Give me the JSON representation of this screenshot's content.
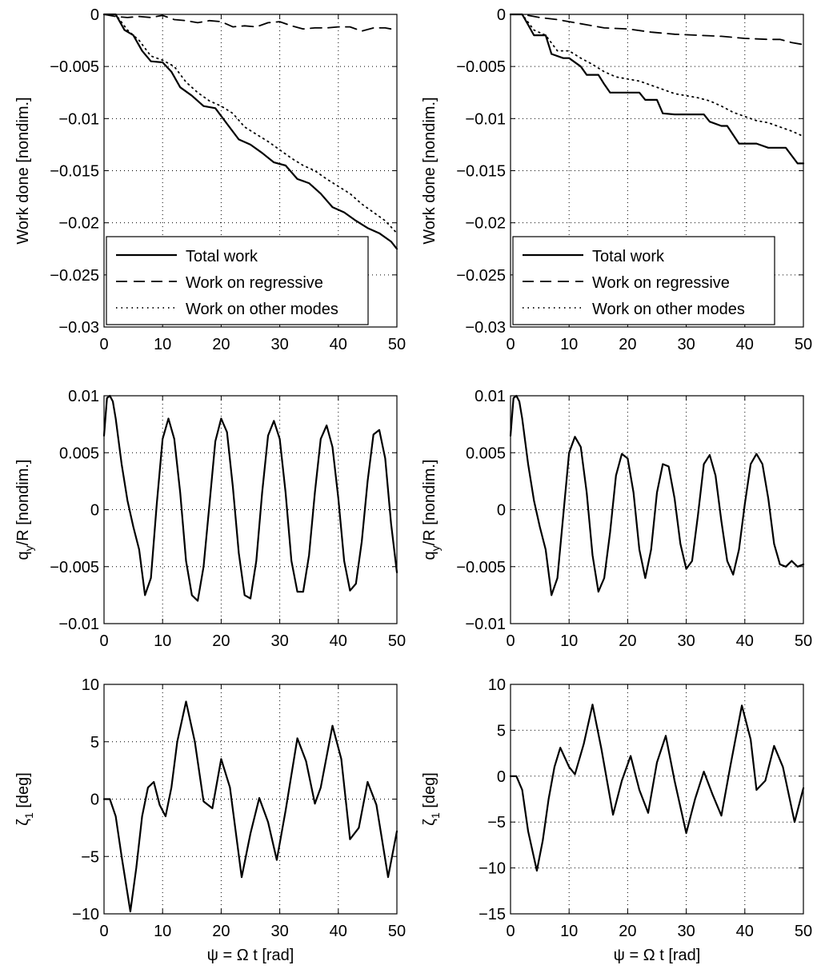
{
  "figure": {
    "background": "#ffffff",
    "line_color": "#000000"
  },
  "chart_data": [
    {
      "type": "line",
      "title": "",
      "xlabel": "",
      "ylabel": "Work done [nondim.]",
      "xlim": [
        0,
        50
      ],
      "ylim": [
        -0.03,
        0
      ],
      "xticks": [
        0,
        10,
        20,
        30,
        40,
        50
      ],
      "xtick_labels": [
        "0",
        "10",
        "20",
        "30",
        "40",
        "50"
      ],
      "yticks": [
        -0.03,
        -0.025,
        -0.02,
        -0.015,
        -0.01,
        -0.005,
        0
      ],
      "ytick_labels": [
        "−0.03",
        "−0.025",
        "−0.02",
        "−0.015",
        "−0.01",
        "−0.005",
        "0"
      ],
      "grid": true,
      "legend": "bottom-left",
      "series": [
        {
          "name": "Total work",
          "style": "solid",
          "x": [
            0,
            2,
            3.5,
            5,
            6.5,
            8,
            10,
            11.5,
            13,
            15,
            17,
            19,
            21,
            23,
            25,
            27,
            29,
            31,
            33,
            35,
            37,
            39,
            41,
            43,
            45,
            47,
            49,
            50
          ],
          "y": [
            0,
            0,
            -0.0015,
            -0.002,
            -0.0035,
            -0.0045,
            -0.0046,
            -0.0055,
            -0.007,
            -0.0078,
            -0.0088,
            -0.009,
            -0.0105,
            -0.012,
            -0.0125,
            -0.0133,
            -0.0142,
            -0.0145,
            -0.0158,
            -0.0162,
            -0.0172,
            -0.0185,
            -0.019,
            -0.0198,
            -0.0205,
            -0.021,
            -0.0218,
            -0.0225
          ]
        },
        {
          "name": "Work on regressive",
          "style": "dashed",
          "x": [
            0,
            2,
            4,
            6,
            8,
            10,
            12,
            14,
            16,
            18,
            20,
            22,
            24,
            26,
            28,
            30,
            32,
            34,
            36,
            38,
            40,
            42,
            44,
            46,
            48,
            50
          ],
          "y": [
            0,
            -0.0002,
            -0.0003,
            -0.0002,
            -0.0003,
            -0.0001,
            -0.0005,
            -0.0006,
            -0.0008,
            -0.0006,
            -0.0007,
            -0.0012,
            -0.0011,
            -0.0012,
            -0.0008,
            -0.0007,
            -0.0011,
            -0.0014,
            -0.0013,
            -0.0013,
            -0.0012,
            -0.0012,
            -0.0016,
            -0.0013,
            -0.0013,
            -0.0015
          ]
        },
        {
          "name": "Work on other modes",
          "style": "dotted",
          "x": [
            0,
            2,
            4,
            6,
            8,
            10,
            12,
            14,
            16,
            18,
            20,
            22,
            24,
            26,
            28,
            30,
            32,
            34,
            36,
            38,
            40,
            42,
            44,
            46,
            48,
            50
          ],
          "y": [
            0,
            0,
            -0.0015,
            -0.0025,
            -0.004,
            -0.0044,
            -0.005,
            -0.0065,
            -0.0075,
            -0.0083,
            -0.0088,
            -0.0095,
            -0.0108,
            -0.0115,
            -0.0122,
            -0.013,
            -0.0138,
            -0.0145,
            -0.015,
            -0.0158,
            -0.0165,
            -0.0172,
            -0.0182,
            -0.019,
            -0.0198,
            -0.021
          ]
        }
      ]
    },
    {
      "type": "line",
      "title": "",
      "xlabel": "",
      "ylabel": "Work done [nondim.]",
      "xlim": [
        0,
        50
      ],
      "ylim": [
        -0.03,
        0
      ],
      "xticks": [
        0,
        10,
        20,
        30,
        40,
        50
      ],
      "xtick_labels": [
        "0",
        "10",
        "20",
        "30",
        "40",
        "50"
      ],
      "yticks": [
        -0.03,
        -0.025,
        -0.02,
        -0.015,
        -0.01,
        -0.005,
        0
      ],
      "ytick_labels": [
        "−0.03",
        "−0.025",
        "−0.02",
        "−0.015",
        "−0.01",
        "−0.005",
        "0"
      ],
      "grid": true,
      "legend": "bottom-left",
      "series": [
        {
          "name": "Total work",
          "style": "solid",
          "x": [
            0,
            2,
            3,
            4,
            6,
            7,
            9,
            10,
            12,
            13,
            15,
            16,
            17,
            19,
            22,
            23,
            25,
            26,
            28,
            31,
            33,
            34,
            36,
            37,
            39,
            42,
            44,
            47,
            49,
            50
          ],
          "y": [
            0,
            0,
            -0.001,
            -0.002,
            -0.002,
            -0.0038,
            -0.0042,
            -0.0042,
            -0.005,
            -0.0058,
            -0.0058,
            -0.0067,
            -0.0075,
            -0.0075,
            -0.0075,
            -0.0082,
            -0.0082,
            -0.0095,
            -0.0096,
            -0.0096,
            -0.0096,
            -0.0103,
            -0.0107,
            -0.0107,
            -0.0124,
            -0.0124,
            -0.0128,
            -0.0128,
            -0.0143,
            -0.0143
          ]
        },
        {
          "name": "Work on regressive",
          "style": "dashed",
          "x": [
            0,
            2,
            5,
            8,
            10,
            13,
            16,
            20,
            24,
            28,
            32,
            36,
            40,
            44,
            46,
            48,
            50
          ],
          "y": [
            0,
            0,
            -0.0003,
            -0.0005,
            -0.0007,
            -0.001,
            -0.0013,
            -0.0014,
            -0.0017,
            -0.0019,
            -0.002,
            -0.0021,
            -0.0023,
            -0.0024,
            -0.0024,
            -0.0027,
            -0.0029
          ]
        },
        {
          "name": "Work on other modes",
          "style": "dotted",
          "x": [
            0,
            2,
            4,
            6,
            8,
            10,
            12,
            14,
            16,
            18,
            20,
            22,
            24,
            26,
            28,
            30,
            32,
            34,
            36,
            38,
            40,
            42,
            44,
            46,
            48,
            50
          ],
          "y": [
            0,
            0,
            -0.0015,
            -0.002,
            -0.0035,
            -0.0035,
            -0.0042,
            -0.0048,
            -0.0055,
            -0.006,
            -0.0062,
            -0.0064,
            -0.0068,
            -0.0072,
            -0.0076,
            -0.0078,
            -0.008,
            -0.0083,
            -0.0088,
            -0.0094,
            -0.0098,
            -0.0102,
            -0.0104,
            -0.0108,
            -0.0112,
            -0.0117
          ]
        }
      ]
    },
    {
      "type": "line",
      "title": "",
      "xlabel": "",
      "ylabel": "q_y/R [nondim.]",
      "xlim": [
        0,
        50
      ],
      "ylim": [
        -0.01,
        0.01
      ],
      "xticks": [
        0,
        10,
        20,
        30,
        40,
        50
      ],
      "xtick_labels": [
        "0",
        "10",
        "20",
        "30",
        "40",
        "50"
      ],
      "yticks": [
        -0.01,
        -0.005,
        0,
        0.005,
        0.01
      ],
      "ytick_labels": [
        "−0.01",
        "−0.005",
        "0",
        "0.005",
        "0.01"
      ],
      "grid": true,
      "series": [
        {
          "name": "",
          "style": "solid",
          "x": [
            0,
            0.5,
            1,
            1.5,
            2,
            3,
            4,
            5,
            6,
            7,
            8,
            9,
            10,
            11,
            12,
            13,
            14,
            15,
            16,
            17,
            18,
            19,
            20,
            21,
            22,
            23,
            24,
            25,
            26,
            27,
            28,
            29,
            30,
            31,
            32,
            33,
            34,
            35,
            36,
            37,
            38,
            39,
            40,
            41,
            42,
            43,
            44,
            45,
            46,
            47,
            48,
            49,
            50
          ],
          "y": [
            0.0065,
            0.0098,
            0.01,
            0.0095,
            0.008,
            0.004,
            0.0008,
            -0.0015,
            -0.0035,
            -0.0075,
            -0.006,
            0.0005,
            0.0062,
            0.008,
            0.0062,
            0.0015,
            -0.0045,
            -0.0075,
            -0.008,
            -0.005,
            0.0005,
            0.006,
            0.008,
            0.0068,
            0.002,
            -0.0038,
            -0.0075,
            -0.0078,
            -0.0045,
            0.0015,
            0.0065,
            0.0078,
            0.0062,
            0.0015,
            -0.0045,
            -0.0072,
            -0.0072,
            -0.004,
            0.0015,
            0.0062,
            0.0074,
            0.0055,
            0.001,
            -0.0045,
            -0.0071,
            -0.0065,
            -0.0028,
            0.0025,
            0.0066,
            0.007,
            0.0045,
            -0.0012,
            -0.0055
          ]
        }
      ]
    },
    {
      "type": "line",
      "title": "",
      "xlabel": "",
      "ylabel": "q_y/R [nondim.]",
      "xlim": [
        0,
        50
      ],
      "ylim": [
        -0.01,
        0.01
      ],
      "xticks": [
        0,
        10,
        20,
        30,
        40,
        50
      ],
      "xtick_labels": [
        "0",
        "10",
        "20",
        "30",
        "40",
        "50"
      ],
      "yticks": [
        -0.01,
        -0.005,
        0,
        0.005,
        0.01
      ],
      "ytick_labels": [
        "−0.01",
        "−0.005",
        "0",
        "0.005",
        "0.01"
      ],
      "grid": true,
      "series": [
        {
          "name": "",
          "style": "solid",
          "x": [
            0,
            0.5,
            1,
            1.5,
            2,
            3,
            4,
            5,
            6,
            7,
            8,
            9,
            10,
            11,
            12,
            13,
            14,
            15,
            16,
            17,
            18,
            19,
            20,
            21,
            22,
            23,
            24,
            25,
            26,
            27,
            28,
            29,
            30,
            31,
            32,
            33,
            34,
            35,
            36,
            37,
            38,
            39,
            40,
            41,
            42,
            43,
            44,
            45,
            46,
            47,
            48,
            49,
            50
          ],
          "y": [
            0.0065,
            0.0098,
            0.01,
            0.0095,
            0.008,
            0.004,
            0.0008,
            -0.0015,
            -0.0035,
            -0.0075,
            -0.006,
            -0.0005,
            0.005,
            0.0064,
            0.0055,
            0.0015,
            -0.004,
            -0.0072,
            -0.006,
            -0.002,
            0.003,
            0.0049,
            0.0045,
            0.0015,
            -0.0035,
            -0.006,
            -0.0035,
            0.0015,
            0.004,
            0.0038,
            0.001,
            -0.003,
            -0.0052,
            -0.0045,
            -0.0005,
            0.004,
            0.0048,
            0.003,
            -0.001,
            -0.0045,
            -0.0057,
            -0.0035,
            0.0005,
            0.004,
            0.0049,
            0.004,
            0.001,
            -0.003,
            -0.0048,
            -0.005,
            -0.0045,
            -0.005,
            -0.0048
          ]
        }
      ]
    },
    {
      "type": "line",
      "title": "",
      "xlabel": "ψ = Ω t [rad]",
      "ylabel": "ζ_1 [deg]",
      "xlim": [
        0,
        50
      ],
      "ylim": [
        -10,
        10
      ],
      "xticks": [
        0,
        10,
        20,
        30,
        40,
        50
      ],
      "xtick_labels": [
        "0",
        "10",
        "20",
        "30",
        "40",
        "50"
      ],
      "yticks": [
        -10,
        -5,
        0,
        5,
        10
      ],
      "ytick_labels": [
        "−10",
        "−5",
        "0",
        "5",
        "10"
      ],
      "grid": true,
      "series": [
        {
          "name": "",
          "style": "solid",
          "x": [
            0,
            1,
            2,
            3,
            4.5,
            5.5,
            6.5,
            7.5,
            8.5,
            9.5,
            10.5,
            11.5,
            12.5,
            14,
            15.5,
            17,
            18.5,
            20,
            21.5,
            23.5,
            25,
            26.5,
            28,
            29.5,
            31,
            33,
            34.5,
            36,
            37,
            39,
            40.5,
            42,
            43.5,
            45,
            46.5,
            48.5,
            50
          ],
          "y": [
            0,
            0,
            -1.5,
            -5,
            -9.8,
            -6,
            -1.5,
            1,
            1.5,
            -0.5,
            -1.5,
            1,
            5,
            8.5,
            5,
            -0.2,
            -0.8,
            3.5,
            1,
            -6.8,
            -3,
            0.1,
            -2,
            -5.3,
            -1,
            5.3,
            3.3,
            -0.4,
            1,
            6.4,
            3.5,
            -3.5,
            -2.5,
            1.5,
            -0.5,
            -6.8,
            -2.8
          ]
        }
      ]
    },
    {
      "type": "line",
      "title": "",
      "xlabel": "ψ = Ω t [rad]",
      "ylabel": "ζ_1 [deg]",
      "xlim": [
        0,
        50
      ],
      "ylim": [
        -15,
        10
      ],
      "xticks": [
        0,
        10,
        20,
        30,
        40,
        50
      ],
      "xtick_labels": [
        "0",
        "10",
        "20",
        "30",
        "40",
        "50"
      ],
      "yticks": [
        -15,
        -10,
        -5,
        0,
        5,
        10
      ],
      "ytick_labels": [
        "−15",
        "−10",
        "−5",
        "0",
        "5",
        "10"
      ],
      "grid": true,
      "series": [
        {
          "name": "",
          "style": "solid",
          "x": [
            0,
            1,
            2,
            3,
            4.5,
            5.5,
            6.5,
            7.5,
            8.5,
            10,
            11,
            12.5,
            14,
            15.5,
            17.5,
            19,
            20.5,
            22,
            23.5,
            25,
            26.5,
            28,
            30,
            31.5,
            33,
            34.5,
            36,
            37.5,
            39.5,
            41,
            42,
            43.5,
            45,
            46.5,
            48.5,
            50
          ],
          "y": [
            0,
            0,
            -1.5,
            -6,
            -10.3,
            -7,
            -2.5,
            1,
            3.1,
            1,
            0.2,
            3.5,
            7.8,
            3,
            -4.2,
            -0.5,
            2.2,
            -1.5,
            -4,
            1.5,
            4.4,
            -0.5,
            -6.2,
            -2.5,
            0.5,
            -2,
            -4.3,
            1,
            7.7,
            4,
            -1.5,
            -0.5,
            3.3,
            1,
            -5,
            -1.3
          ]
        }
      ]
    }
  ],
  "legend": {
    "entries": [
      "Total work",
      "Work on regressive",
      "Work on other modes"
    ]
  }
}
